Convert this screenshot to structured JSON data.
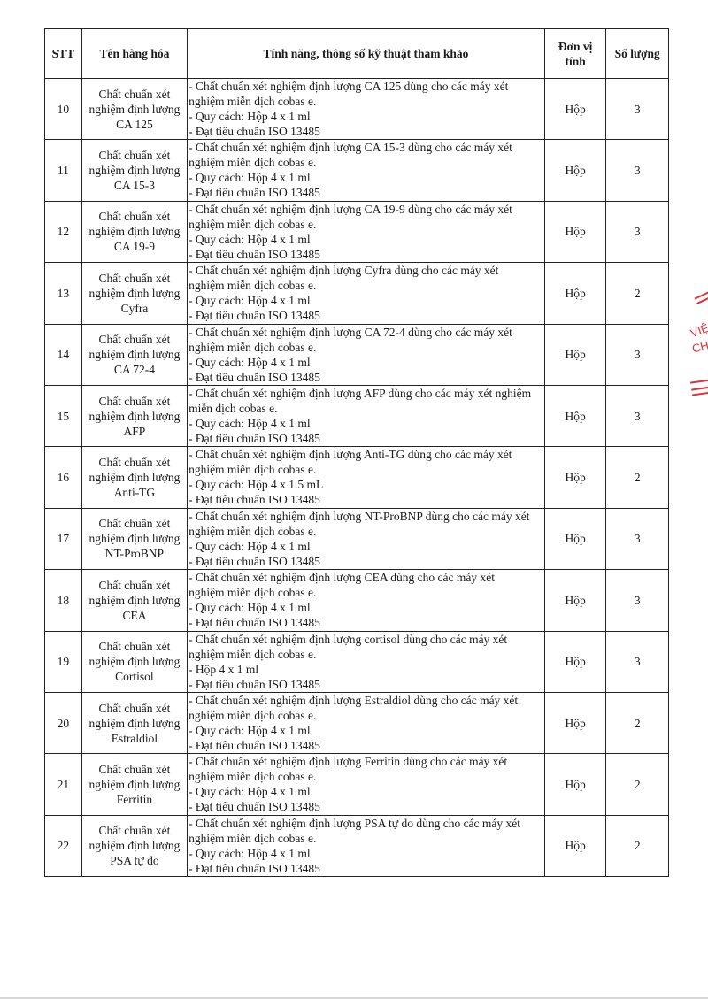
{
  "headers": {
    "stt": "STT",
    "name": "Tên hàng hóa",
    "spec": "Tính năng, thông số kỹ thuật tham khảo",
    "unit_l1": "Đơn vị",
    "unit_l2": "tính",
    "qty": "Số lượng"
  },
  "rows": [
    {
      "stt": "10",
      "name": [
        "Chất chuẩn xét",
        "nghiệm định lượng",
        "CA 125"
      ],
      "spec": [
        "- Chất chuẩn xét nghiệm định lượng CA 125 dùng cho các máy xét",
        "nghiệm miễn dịch cobas e.",
        "- Quy cách: Hộp 4 x 1 ml",
        "- Đạt tiêu chuẩn ISO 13485"
      ],
      "unit": "Hộp",
      "qty": "3"
    },
    {
      "stt": "11",
      "name": [
        "Chất chuẩn xét",
        "nghiệm định lượng",
        "CA 15-3"
      ],
      "spec": [
        "- Chất chuẩn xét nghiệm định lượng CA 15-3 dùng cho các máy xét",
        "nghiệm miễn dịch cobas e.",
        "- Quy cách: Hộp 4 x 1 ml",
        "- Đạt tiêu chuẩn ISO 13485"
      ],
      "unit": "Hộp",
      "qty": "3"
    },
    {
      "stt": "12",
      "name": [
        "Chất chuẩn xét",
        "nghiệm định lượng",
        "CA 19-9"
      ],
      "spec": [
        "- Chất chuẩn xét nghiệm định lượng CA 19-9 dùng cho các máy xét",
        "nghiệm miễn dịch cobas e.",
        "- Quy cách: Hộp 4 x 1 ml",
        "- Đạt tiêu chuẩn ISO 13485"
      ],
      "unit": "Hộp",
      "qty": "3"
    },
    {
      "stt": "13",
      "name": [
        "Chất chuẩn xét",
        "nghiệm định lượng",
        "Cyfra"
      ],
      "spec": [
        "- Chất chuẩn xét nghiệm định lượng Cyfra dùng cho các máy xét",
        "nghiệm miễn dịch cobas e.",
        "- Quy cách: Hộp 4 x 1 ml",
        "- Đạt tiêu chuẩn ISO 13485"
      ],
      "unit": "Hộp",
      "qty": "2"
    },
    {
      "stt": "14",
      "name": [
        "Chất chuẩn xét",
        "nghiệm định lượng",
        "CA 72-4"
      ],
      "spec": [
        "- Chất chuẩn xét nghiệm định lượng CA 72-4 dùng cho các máy xét",
        "nghiệm miễn dịch cobas e.",
        "- Quy cách: Hộp 4 x 1 ml",
        "- Đạt tiêu chuẩn ISO 13485"
      ],
      "unit": "Hộp",
      "qty": "3"
    },
    {
      "stt": "15",
      "name": [
        "Chất chuẩn xét",
        "nghiệm định lượng",
        "AFP"
      ],
      "spec": [
        "- Chất chuẩn xét nghiệm định lượng AFP dùng cho các máy xét nghiệm",
        "miễn dịch cobas e.",
        "- Quy cách: Hộp 4 x 1 ml",
        "- Đạt tiêu chuẩn ISO 13485"
      ],
      "unit": "Hộp",
      "qty": "3"
    },
    {
      "stt": "16",
      "name": [
        "Chất chuẩn xét",
        "nghiệm định lượng",
        "Anti-TG"
      ],
      "spec": [
        "- Chất chuẩn xét nghiệm định lượng Anti-TG dùng cho các máy xét",
        "nghiệm miễn dịch cobas e.",
        "- Quy cách: Hộp  4 x 1.5 mL",
        "- Đạt tiêu chuẩn ISO 13485"
      ],
      "unit": "Hộp",
      "qty": "2"
    },
    {
      "stt": "17",
      "name": [
        "Chất chuẩn xét",
        "nghiệm định lượng",
        "NT-ProBNP"
      ],
      "spec": [
        "- Chất chuẩn xét nghiệm định lượng NT-ProBNP dùng cho các máy xét",
        "nghiệm miễn dịch cobas e.",
        "- Quy cách: Hộp 4 x 1 ml",
        "- Đạt tiêu chuẩn ISO 13485"
      ],
      "unit": "Hộp",
      "qty": "3"
    },
    {
      "stt": "18",
      "name": [
        "Chất chuẩn xét",
        "nghiệm định lượng",
        "CEA"
      ],
      "spec": [
        "- Chất chuẩn xét nghiệm định lượng CEA dùng cho các máy xét",
        "nghiệm miễn dịch cobas e.",
        "- Quy cách: Hộp 4 x 1 ml",
        "- Đạt tiêu chuẩn ISO 13485"
      ],
      "unit": "Hộp",
      "qty": "3"
    },
    {
      "stt": "19",
      "name": [
        "Chất chuẩn xét",
        "nghiệm định lượng",
        "Cortisol"
      ],
      "spec": [
        "- Chất chuẩn xét nghiệm định lượng cortisol dùng cho các máy xét",
        "nghiệm miễn dịch cobas e.",
        "-  Hộp 4 x 1 ml",
        "- Đạt tiêu chuẩn ISO 13485"
      ],
      "unit": "Hộp",
      "qty": "3"
    },
    {
      "stt": "20",
      "name": [
        "Chất chuẩn xét",
        "nghiệm định lượng",
        "Estraldiol"
      ],
      "spec": [
        "- Chất chuẩn xét nghiệm định lượng Estraldiol dùng cho các máy xét",
        "nghiệm miễn dịch cobas e.",
        "- Quy cách: Hộp 4 x 1 ml",
        "- Đạt tiêu chuẩn ISO 13485"
      ],
      "unit": "Hộp",
      "qty": "2"
    },
    {
      "stt": "21",
      "name": [
        "Chất chuẩn xét",
        "nghiệm định lượng",
        "Ferritin"
      ],
      "spec": [
        "- Chất chuẩn xét nghiệm định lượng Ferritin dùng cho các máy xét",
        "nghiệm miễn dịch cobas e.",
        "- Quy cách: Hộp 4 x 1 ml",
        "- Đạt tiêu chuẩn ISO 13485"
      ],
      "unit": "Hộp",
      "qty": "2"
    },
    {
      "stt": "22",
      "name": [
        "Chất chuẩn xét",
        "nghiệm định lượng",
        "PSA tự do"
      ],
      "spec": [
        "- Chất chuẩn xét nghiệm định lượng PSA tự do dùng cho các máy xét",
        "nghiệm miễn dịch cobas e.",
        "- Quy cách: Hộp 4 x 1 ml",
        "- Đạt tiêu chuẩn ISO 13485"
      ],
      "unit": "Hộp",
      "qty": "2"
    }
  ],
  "stamp": {
    "text_l1": "VIỆ",
    "text_l2": "CHÍ",
    "color": "#e0303a"
  }
}
